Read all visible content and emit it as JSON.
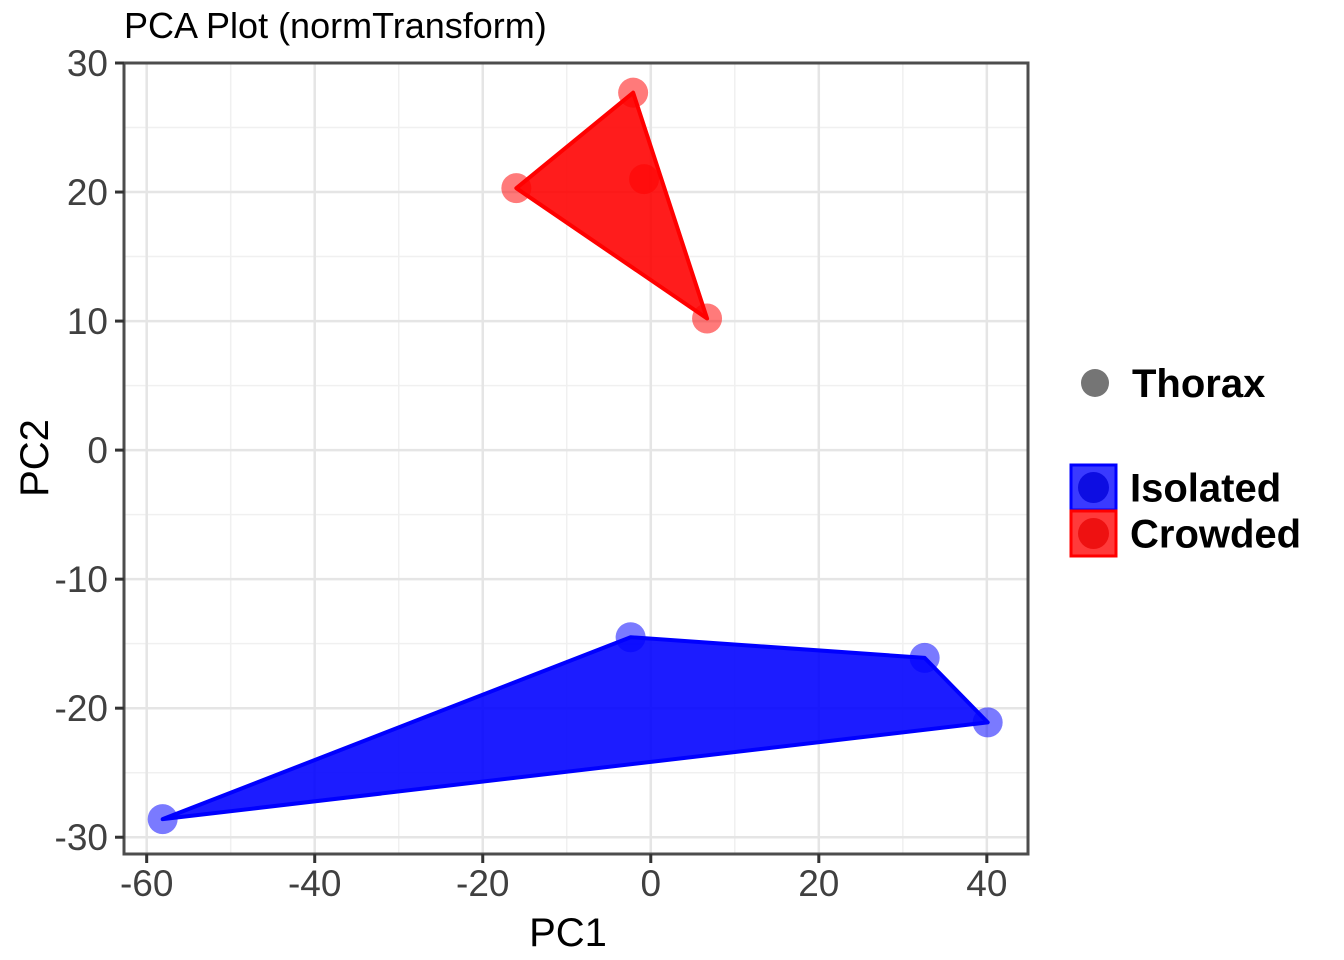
{
  "chart_data": {
    "type": "scatter",
    "title": "PCA Plot (normTransform)",
    "xlabel": "PC1",
    "ylabel": "PC2",
    "xlim": [
      -62.7,
      44.9
    ],
    "ylim": [
      -31.3,
      30.0
    ],
    "grid": "on",
    "x_ticks": [
      {
        "value": -60,
        "label": "-60"
      },
      {
        "value": -40,
        "label": "-40"
      },
      {
        "value": -20,
        "label": "-20"
      },
      {
        "value": 0,
        "label": "0"
      },
      {
        "value": 20,
        "label": "20"
      },
      {
        "value": 40,
        "label": "40"
      }
    ],
    "y_ticks": [
      {
        "value": 30,
        "label": "30"
      },
      {
        "value": 20,
        "label": "20"
      },
      {
        "value": 10,
        "label": "10"
      },
      {
        "value": 0,
        "label": "0"
      },
      {
        "value": -10,
        "label": "-10"
      },
      {
        "value": -20,
        "label": "-20"
      },
      {
        "value": -30,
        "label": "-30"
      }
    ],
    "x_minor_ticks": [
      -50,
      -30,
      -10,
      10,
      30
    ],
    "y_minor_ticks": [
      -25,
      -15,
      -5,
      5,
      15,
      25
    ],
    "fill_alpha": 0.89,
    "point_alpha": 0.52,
    "point_radius_px": 15,
    "series": [
      {
        "name": "Crowded",
        "color": "#FF0000",
        "points": [
          {
            "x": -2.1,
            "y": 27.7
          },
          {
            "x": -16.0,
            "y": 20.3
          },
          {
            "x": -0.8,
            "y": 21.0
          },
          {
            "x": 6.7,
            "y": 10.2
          }
        ],
        "hull": [
          {
            "x": -16.0,
            "y": 20.3
          },
          {
            "x": -2.1,
            "y": 27.7
          },
          {
            "x": 6.7,
            "y": 10.2
          }
        ]
      },
      {
        "name": "Isolated",
        "color": "#0000FF",
        "points": [
          {
            "x": -58.1,
            "y": -28.6
          },
          {
            "x": -2.4,
            "y": -14.5
          },
          {
            "x": 32.6,
            "y": -16.1
          },
          {
            "x": 40.1,
            "y": -21.1
          }
        ],
        "hull": [
          {
            "x": -58.1,
            "y": -28.6
          },
          {
            "x": -2.4,
            "y": -14.5
          },
          {
            "x": 32.6,
            "y": -16.1
          },
          {
            "x": 40.1,
            "y": -21.1
          }
        ]
      }
    ],
    "legend": {
      "position": "right",
      "thorax": {
        "label": "Thorax",
        "dot_color": "#757575"
      },
      "groups": [
        {
          "label": "Isolated",
          "color": "#0000FF",
          "key_fill": "#3A3AFF",
          "dot_fill": "#0D0DE2"
        },
        {
          "label": "Crowded",
          "color": "#FF0000",
          "key_fill": "#FF3A3A",
          "dot_fill": "#EE1111"
        }
      ]
    },
    "colors": {
      "grid_major": "#E5E5E5",
      "grid_minor": "#F0F0F0",
      "panel_border": "#4D4D4D",
      "tick_mark": "#333333",
      "tick_text": "#404040"
    }
  }
}
